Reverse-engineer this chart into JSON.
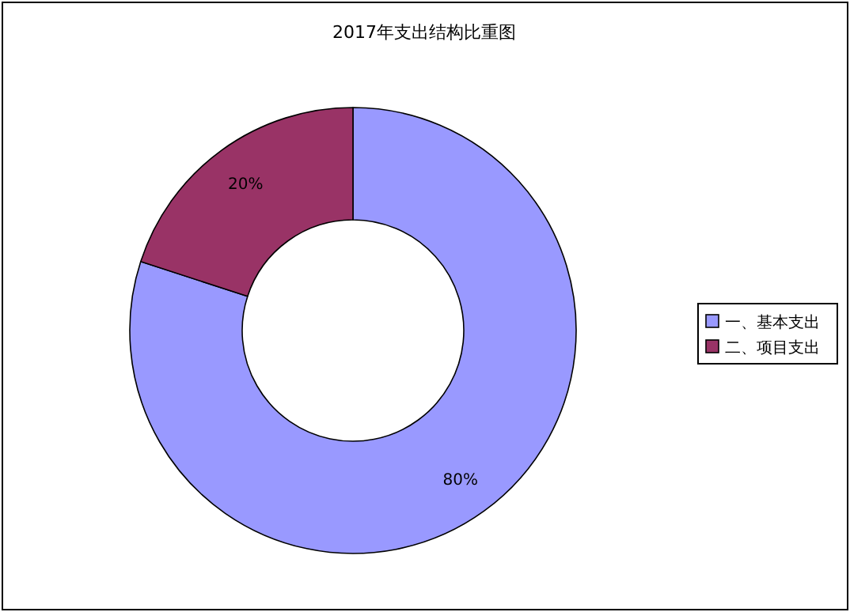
{
  "chart_data": {
    "type": "donut",
    "title": "2017年支出结构比重图",
    "categories": [
      "一、基本支出",
      "二、项目支出"
    ],
    "values": [
      80,
      20
    ],
    "colors": [
      "#9999ff",
      "#993366"
    ],
    "value_labels": [
      "80%",
      "20%"
    ],
    "legend": "right"
  }
}
